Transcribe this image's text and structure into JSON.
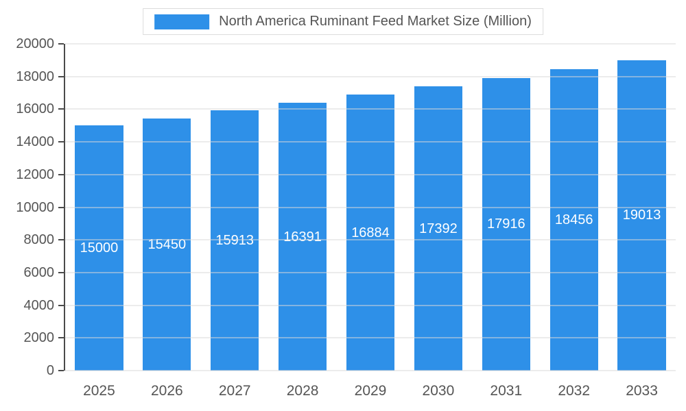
{
  "chart_data": {
    "type": "bar",
    "title": "North America Ruminant Feed Market Size (Million)",
    "categories": [
      "2025",
      "2026",
      "2027",
      "2028",
      "2029",
      "2030",
      "2031",
      "2032",
      "2033"
    ],
    "values": [
      15000,
      15450,
      15913,
      16391,
      16884,
      17392,
      17916,
      18456,
      19013
    ],
    "xlabel": "",
    "ylabel": "",
    "ylim": [
      0,
      20000
    ],
    "ytick_interval": 2000,
    "ytick_labels": [
      "0",
      "2000",
      "4000",
      "6000",
      "8000",
      "10000",
      "12000",
      "14000",
      "16000",
      "18000",
      "20000"
    ],
    "grid": true,
    "legend_position": "top",
    "colors": {
      "bar": "#2e90e8",
      "value_label": "#ffffff",
      "axis_text": "#555555",
      "axis_line": "#4a4a4a",
      "gridline": "#d9d9d9",
      "background": "#ffffff"
    }
  }
}
